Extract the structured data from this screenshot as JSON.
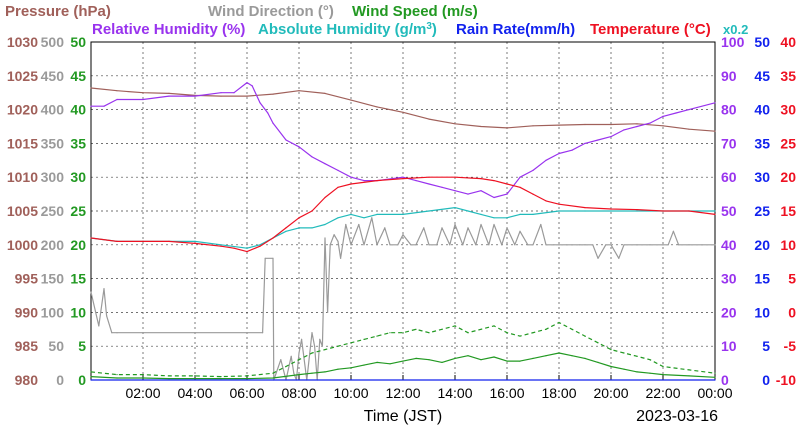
{
  "chart_data": {
    "type": "line",
    "date": "2023-03-16",
    "xlabel": "Time (JST)",
    "x_ticks": [
      "02:00",
      "04:00",
      "06:00",
      "08:00",
      "10:00",
      "12:00",
      "14:00",
      "16:00",
      "18:00",
      "20:00",
      "22:00",
      "00:00"
    ],
    "x_range_hours": [
      0,
      24
    ],
    "grid": true,
    "axes": {
      "pressure": {
        "label": "Pressure (hPa)",
        "color": "#a0605a",
        "range": [
          980,
          1030
        ],
        "ticks": [
          980,
          985,
          990,
          995,
          1000,
          1005,
          1010,
          1015,
          1020,
          1025,
          1030
        ]
      },
      "wind_direction": {
        "label": "Wind Direction (°)",
        "color": "#9a9a9a",
        "range": [
          0,
          500
        ],
        "ticks": [
          0,
          50,
          100,
          150,
          200,
          250,
          300,
          350,
          400,
          450,
          500
        ]
      },
      "wind_speed": {
        "label": "Wind Speed (m/s)",
        "color": "#229922",
        "range": [
          0,
          50
        ],
        "ticks": [
          0,
          5,
          10,
          15,
          20,
          25,
          30,
          35,
          40,
          45,
          50
        ]
      },
      "humidity": {
        "label": "Relative Humidity (%)",
        "color": "#9933ee",
        "range": [
          0,
          100
        ],
        "ticks": [
          0,
          10,
          20,
          30,
          40,
          50,
          60,
          70,
          80,
          90,
          100
        ]
      },
      "abs_humidity": {
        "label": "Absolute Humidity (g/m3)",
        "color": "#22bbbb",
        "scale": "x0.2"
      },
      "rain_rate": {
        "label": "Rain Rate(mm/h)",
        "color": "#1122ee",
        "range": [
          0,
          50
        ],
        "ticks": [
          0,
          5,
          10,
          15,
          20,
          25,
          30,
          35,
          40,
          45,
          50
        ]
      },
      "temperature": {
        "label": "Temperature (°C)",
        "color": "#ee1122",
        "range": [
          -10,
          40
        ],
        "ticks": [
          -10,
          -5,
          0,
          5,
          10,
          15,
          20,
          25,
          30,
          35,
          40
        ]
      }
    },
    "series": [
      {
        "name": "Pressure (hPa)",
        "axis": "pressure",
        "color": "#a0605a",
        "style": "solid",
        "x": [
          0,
          1,
          2,
          3,
          4,
          5,
          6,
          7,
          8,
          9,
          10,
          11,
          12,
          13,
          14,
          15,
          16,
          17,
          18,
          19,
          20,
          21,
          22,
          23,
          24
        ],
        "y": [
          1023.2,
          1022.8,
          1022.5,
          1022.4,
          1022.1,
          1022.0,
          1022.0,
          1022.3,
          1022.8,
          1022.4,
          1021.4,
          1020.4,
          1019.6,
          1018.6,
          1017.9,
          1017.5,
          1017.3,
          1017.6,
          1017.7,
          1017.8,
          1017.8,
          1017.9,
          1017.6,
          1017.1,
          1016.8
        ]
      },
      {
        "name": "Wind Direction (°)",
        "axis": "wind_direction",
        "color": "#9a9a9a",
        "style": "solid",
        "x": [
          0,
          0.3,
          0.5,
          0.6,
          0.8,
          1.0,
          4.0,
          6.0,
          6.6,
          6.7,
          7.0,
          7.03,
          7.3,
          7.5,
          7.7,
          7.8,
          7.9,
          8.0,
          8.1,
          8.3,
          8.5,
          8.6,
          8.7,
          8.8,
          8.9,
          9.0,
          9.1,
          9.2,
          9.35,
          9.5,
          9.6,
          9.8,
          10.0,
          10.3,
          10.5,
          10.8,
          11.0,
          11.3,
          11.5,
          11.8,
          12.0,
          12.3,
          12.5,
          12.8,
          13.0,
          13.3,
          13.5,
          13.8,
          14.0,
          14.3,
          14.5,
          14.8,
          15.0,
          15.3,
          15.5,
          15.8,
          16.0,
          16.3,
          16.5,
          16.8,
          17.0,
          17.3,
          17.5,
          17.8,
          18.0,
          18.3,
          18.5,
          18.8,
          19.0,
          19.3,
          19.5,
          19.8,
          20.0,
          20.3,
          20.5,
          21.0,
          21.5,
          22.0,
          22.2,
          22.4,
          22.6,
          23.0,
          23.5,
          24.0
        ],
        "y": [
          130,
          80,
          135,
          95,
          70,
          70,
          70,
          70,
          70,
          180,
          180,
          0,
          30,
          0,
          35,
          10,
          0,
          40,
          60,
          0,
          70,
          50,
          0,
          60,
          50,
          210,
          100,
          200,
          215,
          205,
          180,
          230,
          200,
          230,
          200,
          240,
          200,
          225,
          200,
          200,
          215,
          200,
          200,
          225,
          200,
          200,
          225,
          200,
          230,
          200,
          225,
          200,
          230,
          200,
          230,
          200,
          225,
          200,
          220,
          200,
          200,
          230,
          200,
          200,
          200,
          200,
          200,
          200,
          200,
          200,
          180,
          200,
          200,
          180,
          200,
          200,
          200,
          200,
          200,
          220,
          200,
          200,
          200,
          200
        ]
      },
      {
        "name": "Wind Speed (m/s)",
        "axis": "wind_speed",
        "color": "#229922",
        "style": "solid",
        "x": [
          0,
          1,
          2,
          3,
          4,
          5,
          6,
          7,
          8,
          8.5,
          9,
          9.5,
          10,
          10.5,
          11,
          11.5,
          12,
          12.5,
          13,
          13.5,
          14,
          14.5,
          15,
          15.5,
          16,
          16.5,
          17,
          17.5,
          18,
          18.5,
          19,
          19.5,
          20,
          20.5,
          21,
          21.5,
          22,
          23,
          24
        ],
        "y": [
          0.5,
          0.3,
          0.3,
          0.2,
          0.2,
          0.2,
          0.2,
          0.3,
          0.8,
          1.0,
          1.2,
          1.6,
          1.8,
          2.2,
          2.6,
          2.4,
          2.8,
          3.2,
          3.0,
          2.6,
          3.2,
          3.6,
          3.0,
          3.4,
          2.8,
          2.8,
          3.2,
          3.6,
          4.0,
          3.6,
          3.2,
          2.6,
          2.0,
          1.6,
          1.2,
          1.0,
          0.8,
          0.6,
          0.4
        ]
      },
      {
        "name": "Wind Speed gust (m/s)",
        "axis": "wind_speed",
        "color": "#229922",
        "style": "dashed",
        "x": [
          0,
          1,
          2,
          3,
          4,
          5,
          6,
          7,
          7.5,
          8,
          8.5,
          9,
          9.5,
          10,
          10.5,
          11,
          11.5,
          12,
          12.5,
          13,
          13.5,
          14,
          14.5,
          15,
          15.5,
          16,
          16.5,
          17,
          17.5,
          18,
          18.5,
          19,
          19.5,
          20,
          20.5,
          21,
          21.5,
          22,
          23,
          24
        ],
        "y": [
          1.2,
          0.8,
          0.8,
          0.6,
          0.6,
          0.5,
          0.6,
          1.0,
          2.0,
          3.0,
          4.0,
          4.5,
          5.0,
          5.5,
          6.0,
          6.5,
          7.0,
          7.0,
          7.5,
          7.0,
          7.5,
          8.0,
          7.0,
          7.5,
          8.0,
          7.0,
          6.5,
          7.0,
          7.5,
          8.5,
          7.5,
          6.5,
          5.5,
          4.5,
          4.0,
          3.5,
          3.0,
          2.0,
          1.5,
          1.0
        ]
      },
      {
        "name": "Relative Humidity (%)",
        "axis": "humidity",
        "color": "#9933ee",
        "style": "solid",
        "x": [
          0,
          0.5,
          1,
          2,
          3,
          4,
          5,
          5.5,
          6,
          6.2,
          6.5,
          6.8,
          7,
          7.5,
          8,
          8.5,
          9,
          9.5,
          10,
          10.5,
          11,
          12,
          12.5,
          13,
          13.5,
          14,
          14.5,
          15,
          15.5,
          16,
          16.5,
          17,
          17.5,
          18,
          18.5,
          19,
          19.5,
          20,
          20.5,
          21,
          21.5,
          22,
          22.5,
          23,
          24
        ],
        "y": [
          81,
          81,
          83,
          83,
          84,
          84,
          85,
          85,
          88,
          87,
          82,
          79,
          76,
          71,
          69,
          66,
          64,
          62,
          60,
          59,
          59,
          60,
          59,
          58,
          57,
          56,
          55,
          56,
          54,
          55,
          60,
          62,
          65,
          67,
          68,
          70,
          71,
          72,
          74,
          75,
          76,
          78,
          79,
          80,
          82
        ]
      },
      {
        "name": "Absolute Humidity (g/m3)",
        "axis": "humidity",
        "color": "#22bbbb",
        "style": "solid",
        "x": [
          0,
          1,
          2,
          3,
          4,
          5,
          6,
          6.5,
          7,
          7.5,
          8,
          8.5,
          9,
          9.5,
          10,
          10.5,
          11,
          12,
          13,
          14,
          14.5,
          15,
          15.5,
          16,
          16.5,
          17,
          18,
          19,
          20,
          21,
          22,
          23,
          24
        ],
        "y": [
          42,
          41,
          41,
          41,
          41,
          40,
          39,
          40,
          42,
          44,
          45,
          45,
          46,
          48,
          49,
          48,
          49,
          49,
          50,
          51,
          50,
          49,
          48,
          48,
          49,
          49,
          50,
          50,
          50,
          50,
          50,
          50,
          50
        ]
      },
      {
        "name": "Temperature (°C)",
        "axis": "temperature",
        "color": "#ee1122",
        "style": "solid",
        "x": [
          0,
          1,
          2,
          3,
          4,
          5,
          5.5,
          6,
          6.5,
          7,
          7.5,
          8,
          8.5,
          9,
          9.5,
          10,
          11,
          12,
          13,
          14,
          15,
          15.5,
          16,
          16.5,
          17,
          17.5,
          18,
          19,
          20,
          21,
          22,
          23,
          24
        ],
        "y": [
          11.0,
          10.5,
          10.5,
          10.5,
          10.2,
          9.8,
          9.5,
          9.0,
          9.8,
          11.0,
          12.5,
          14.0,
          15.0,
          17.0,
          18.5,
          19.0,
          19.5,
          19.8,
          20.0,
          20.0,
          19.8,
          19.5,
          19.0,
          18.5,
          17.5,
          16.5,
          16.0,
          15.5,
          15.3,
          15.2,
          15.0,
          15.0,
          14.5
        ]
      },
      {
        "name": "Rain Rate(mm/h)",
        "axis": "rain_rate",
        "color": "#1122ee",
        "style": "solid",
        "x": [
          0,
          24
        ],
        "y": [
          0,
          0
        ]
      }
    ]
  }
}
